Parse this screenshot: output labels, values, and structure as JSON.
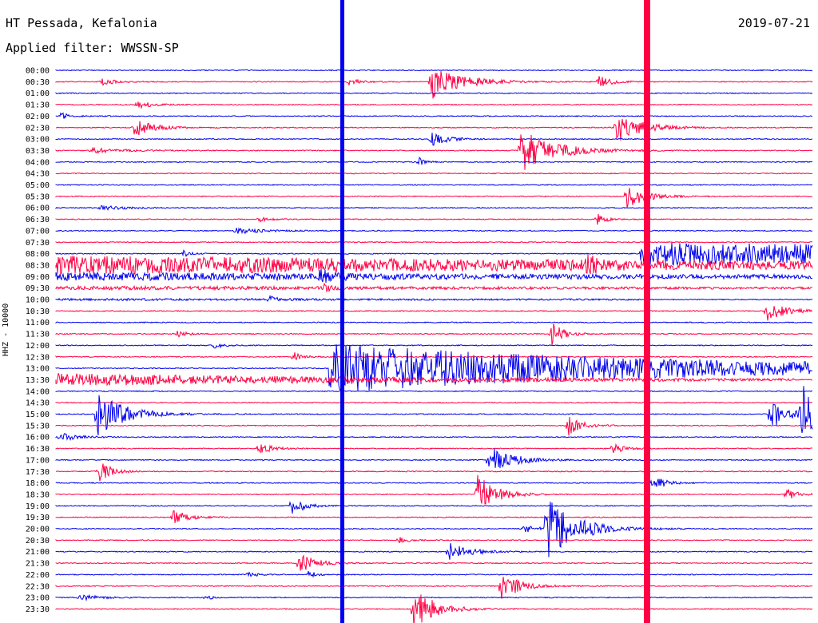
{
  "header": {
    "station": "HT Pessada, Kefalonia",
    "filter": "Applied filter: WWSSN-SP",
    "date": "2019-07-21"
  },
  "chart_data": {
    "type": "line",
    "title": "HT Pessada, Kefalonia",
    "subtitle": "Applied filter: WWSSN-SP",
    "date": "2019-07-21",
    "ylabel": "HHZ - 10000",
    "xlabel": "",
    "rows": [
      "00:00",
      "00:30",
      "01:00",
      "01:30",
      "02:00",
      "02:30",
      "03:00",
      "03:30",
      "04:00",
      "04:30",
      "05:00",
      "05:30",
      "06:00",
      "06:30",
      "07:00",
      "07:30",
      "08:00",
      "08:30",
      "09:00",
      "09:30",
      "10:00",
      "10:30",
      "11:00",
      "11:30",
      "12:00",
      "12:30",
      "13:00",
      "13:30",
      "14:00",
      "14:30",
      "15:00",
      "15:30",
      "16:00",
      "16:30",
      "17:00",
      "17:30",
      "18:00",
      "18:30",
      "19:00",
      "19:30",
      "20:00",
      "20:30",
      "21:00",
      "21:30",
      "22:00",
      "22:30",
      "23:00",
      "23:30"
    ],
    "colors": [
      "#0000ee",
      "#ff0044"
    ],
    "grid": false
  }
}
